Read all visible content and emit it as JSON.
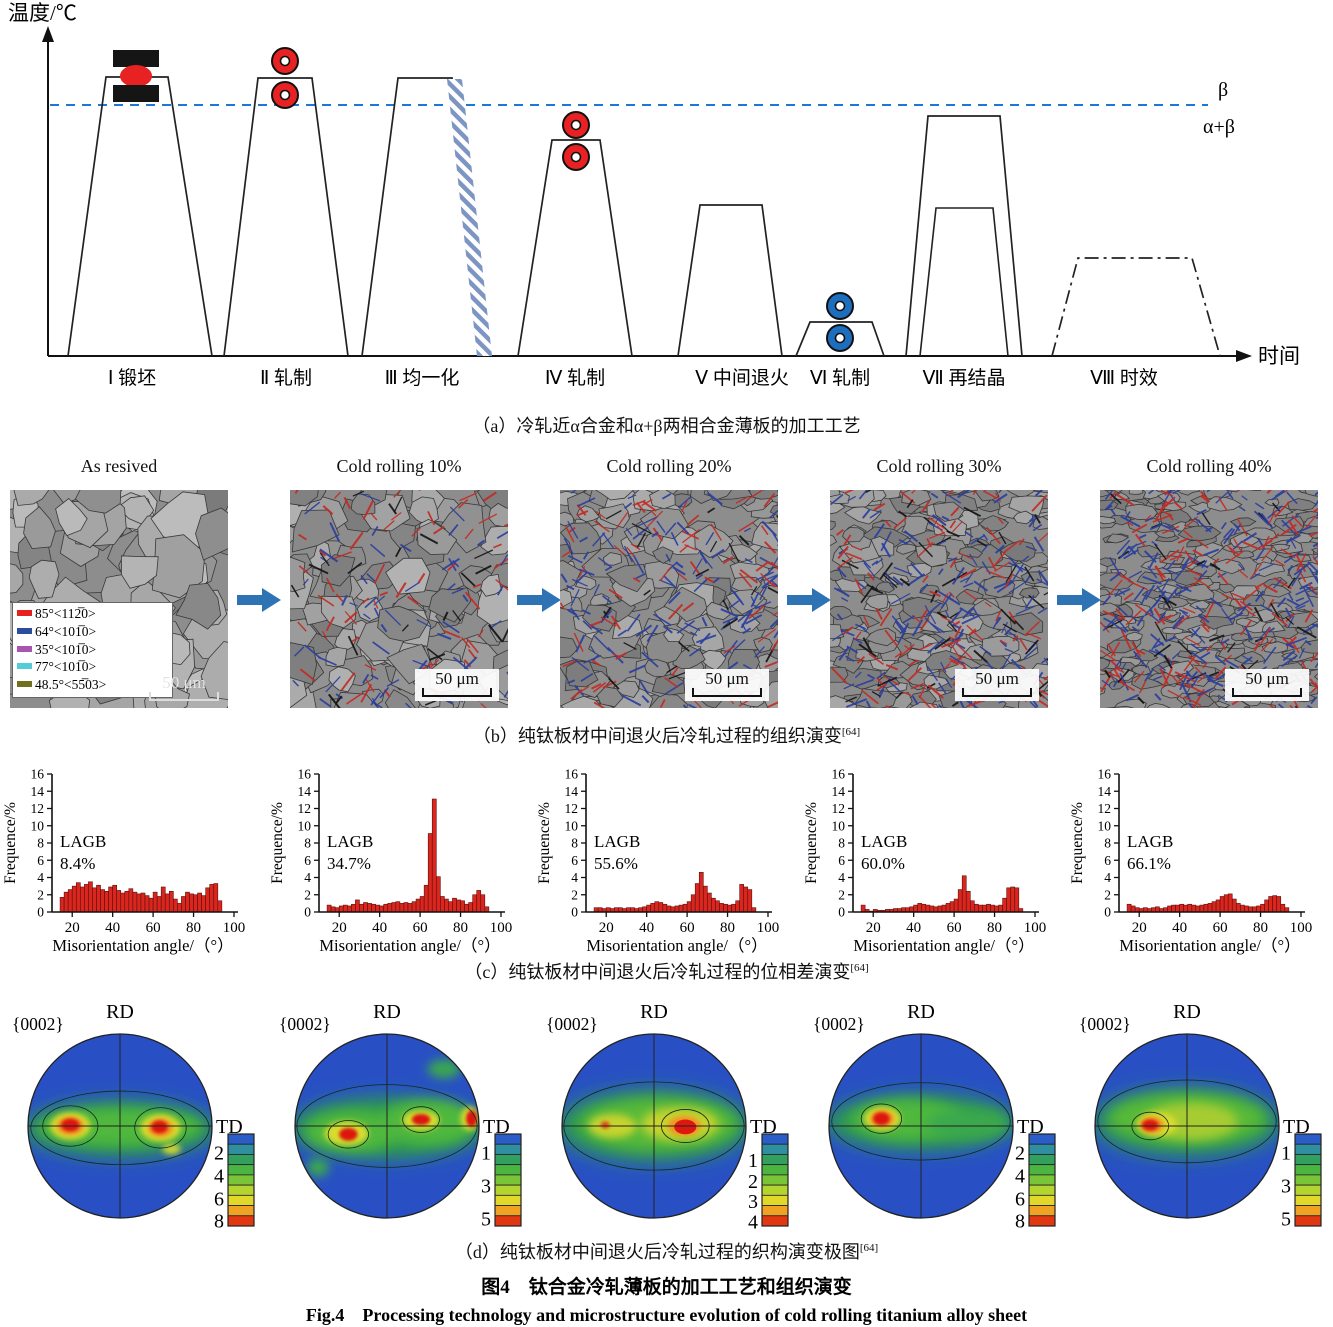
{
  "panel_a": {
    "caption": "（a）冷轧近α合金和α+β两相合金薄板的加工工艺",
    "y_axis": "温度/℃",
    "x_axis": "时间",
    "beta": "β",
    "alpha_beta": "α+β",
    "stages": [
      {
        "label": "Ⅰ 锻坯",
        "symbol": "forging-press"
      },
      {
        "label": "Ⅱ 轧制",
        "symbol": "red-rolls"
      },
      {
        "label": "Ⅲ 均一化",
        "symbol": "quench-hatch"
      },
      {
        "label": "Ⅳ 轧制",
        "symbol": "red-rolls"
      },
      {
        "label": "Ⅴ 中间退火",
        "symbol": "none"
      },
      {
        "label": "Ⅵ 轧制",
        "symbol": "blue-rolls"
      },
      {
        "label": "Ⅶ 再结晶",
        "symbol": "double-step"
      },
      {
        "label": "Ⅷ 时效",
        "symbol": "dash-dot"
      }
    ]
  },
  "panel_b": {
    "caption": "（b）纯钛板材中间退火后冷轧过程的组织演变",
    "ref": "[64]",
    "labels": [
      "As resived",
      "Cold rolling 10%",
      "Cold rolling 20%",
      "Cold rolling 30%",
      "Cold rolling 40%"
    ],
    "scale_bar": "50 μm",
    "legend": [
      {
        "color": "#e62020",
        "label": "85°<112̅0>"
      },
      {
        "color": "#2c4d9e",
        "label": "64°<101̅0>"
      },
      {
        "color": "#a855b0",
        "label": "35°<101̅0>"
      },
      {
        "color": "#54ccd8",
        "label": "77°<101̅0>"
      },
      {
        "color": "#70701e",
        "label": "48.5°<55̅03>"
      }
    ]
  },
  "panel_c": {
    "caption": "（c）纯钛板材中间退火后冷轧过程的位相差演变",
    "ref": "[64]"
  },
  "chart_data": [
    {
      "type": "bar",
      "title": "As resived",
      "lagb_label": "LAGB",
      "lagb": "8.4%",
      "xlabel": "Misorientation angle/（°）",
      "ylabel": "Frequence/%",
      "xlim": [
        10,
        100
      ],
      "ylim": [
        0,
        16
      ],
      "bin_start": 14,
      "bin_width": 2,
      "values": [
        1.7,
        2.3,
        2.6,
        3.0,
        3.4,
        2.9,
        3.2,
        3.5,
        2.8,
        3.1,
        2.6,
        2.4,
        2.9,
        3.1,
        2.5,
        2.2,
        2.4,
        2.7,
        2.3,
        2.1,
        2.2,
        1.9,
        1.6,
        2.3,
        1.8,
        2.9,
        2.1,
        2.4,
        1.5,
        1.0,
        1.8,
        2.3,
        2.1,
        2.0,
        2.2,
        1.9,
        2.8,
        3.2,
        3.3,
        1.3
      ]
    },
    {
      "type": "bar",
      "title": "Cold rolling 10%",
      "lagb_label": "LAGB",
      "lagb": "34.7%",
      "xlabel": "Misorientation angle/（°）",
      "ylabel": "Frequence/%",
      "xlim": [
        10,
        100
      ],
      "ylim": [
        0,
        16
      ],
      "bin_start": 14,
      "bin_width": 2,
      "values": [
        0.8,
        0.6,
        0.5,
        0.7,
        0.8,
        0.7,
        0.9,
        1.4,
        0.9,
        1.1,
        1.0,
        0.9,
        0.8,
        0.7,
        0.9,
        1.0,
        1.1,
        1.2,
        1.0,
        1.1,
        1.0,
        1.2,
        1.5,
        1.8,
        3.1,
        9.1,
        13.1,
        4.1,
        1.8,
        1.5,
        1.2,
        1.6,
        1.4,
        1.3,
        0.9,
        1.1,
        2.0,
        2.5,
        2.0,
        0.6
      ]
    },
    {
      "type": "bar",
      "title": "Cold rolling 20%",
      "lagb_label": "LAGB",
      "lagb": "55.6%",
      "xlabel": "Misorientation angle/（°）",
      "ylabel": "Frequence/%",
      "xlim": [
        10,
        100
      ],
      "ylim": [
        0,
        16
      ],
      "bin_start": 14,
      "bin_width": 2,
      "values": [
        0.5,
        0.5,
        0.4,
        0.5,
        0.4,
        0.5,
        0.5,
        0.4,
        0.5,
        0.5,
        0.4,
        0.5,
        0.6,
        0.8,
        1.0,
        1.2,
        1.1,
        0.9,
        0.7,
        0.6,
        0.7,
        0.8,
        0.9,
        1.2,
        2.0,
        3.3,
        4.6,
        3.0,
        2.2,
        1.6,
        1.3,
        1.0,
        0.9,
        0.8,
        0.9,
        1.3,
        3.2,
        2.9,
        2.6,
        0.5
      ]
    },
    {
      "type": "bar",
      "title": "Cold rolling 30%",
      "lagb_label": "LAGB",
      "lagb": "60.0%",
      "xlabel": "Misorientation angle/（°）",
      "ylabel": "Frequence/%",
      "xlim": [
        10,
        100
      ],
      "ylim": [
        0,
        16
      ],
      "bin_start": 14,
      "bin_width": 2,
      "values": [
        0.8,
        0.3,
        0.1,
        0.3,
        0.2,
        0.2,
        0.3,
        0.3,
        0.4,
        0.4,
        0.5,
        0.5,
        0.6,
        0.8,
        1.0,
        0.9,
        0.8,
        0.7,
        0.6,
        0.7,
        0.8,
        1.0,
        1.2,
        1.5,
        2.6,
        4.2,
        2.4,
        1.3,
        0.9,
        0.8,
        0.8,
        0.9,
        0.8,
        0.7,
        0.8,
        1.6,
        2.8,
        2.9,
        2.8,
        0.4
      ]
    },
    {
      "type": "bar",
      "title": "Cold rolling 40%",
      "lagb_label": "LAGB",
      "lagb": "66.1%",
      "xlabel": "Misorientation angle/（°）",
      "ylabel": "Frequence/%",
      "xlim": [
        10,
        100
      ],
      "ylim": [
        0,
        16
      ],
      "bin_start": 14,
      "bin_width": 2,
      "values": [
        0.9,
        0.7,
        0.5,
        0.4,
        0.5,
        0.4,
        0.5,
        0.6,
        0.4,
        0.5,
        0.7,
        0.8,
        0.8,
        0.9,
        0.8,
        0.9,
        0.8,
        0.7,
        0.8,
        0.9,
        1.0,
        1.2,
        1.4,
        1.8,
        2.0,
        2.1,
        1.5,
        1.0,
        0.8,
        0.7,
        0.6,
        0.6,
        0.7,
        0.9,
        1.4,
        1.8,
        1.9,
        1.8,
        0.9,
        0.5
      ]
    }
  ],
  "panel_d": {
    "caption": "（d）纯钛板材中间退火后冷轧过程的织构演变极图",
    "ref": "[64]",
    "pole_figures": [
      {
        "plane": "{0002}",
        "rd": "RD",
        "td": "TD",
        "scale_ticks": [
          2,
          4,
          6,
          8
        ]
      },
      {
        "plane": "{0002}",
        "rd": "RD",
        "td": "TD",
        "scale_ticks": [
          1,
          3,
          5
        ]
      },
      {
        "plane": "{0002}",
        "rd": "RD",
        "td": "TD",
        "scale_ticks": [
          1,
          2,
          3,
          4
        ]
      },
      {
        "plane": "{0002}",
        "rd": "RD",
        "td": "TD",
        "scale_ticks": [
          2,
          4,
          6,
          8
        ]
      },
      {
        "plane": "{0002}",
        "rd": "RD",
        "td": "TD",
        "scale_ticks": [
          1,
          3,
          5
        ]
      }
    ]
  },
  "caption_zh": "图4　钛合金冷轧薄板的加工工艺和组织演变",
  "caption_en": "Fig.4　Processing technology and microstructure evolution of cold rolling titanium alloy sheet"
}
